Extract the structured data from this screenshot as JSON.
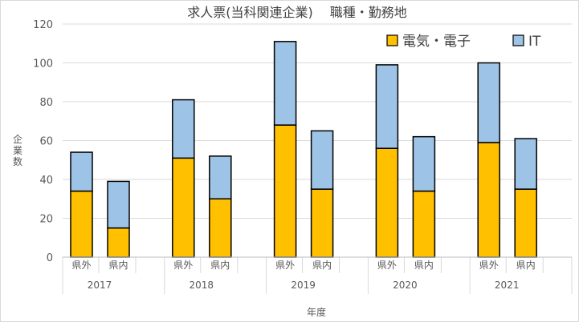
{
  "chart_data": {
    "type": "bar",
    "stacked": true,
    "title": "求人票(当科関連企業)　 職種・勤務地",
    "ylabel": "企業数",
    "xlabel": "年度",
    "ylim": [
      0,
      120
    ],
    "yticks": [
      0,
      20,
      40,
      60,
      80,
      100,
      120
    ],
    "grid": true,
    "legend_position": "top-right",
    "groups": [
      "2017",
      "2018",
      "2019",
      "2020",
      "2021"
    ],
    "categories": [
      "県外",
      "県内"
    ],
    "series": [
      {
        "name": "電気・電子",
        "color": "#ffc000",
        "values": [
          [
            34,
            15
          ],
          [
            51,
            30
          ],
          [
            68,
            35
          ],
          [
            56,
            34
          ],
          [
            59,
            35
          ]
        ]
      },
      {
        "name": "IT",
        "color": "#9dc3e6",
        "values": [
          [
            20,
            24
          ],
          [
            30,
            22
          ],
          [
            43,
            30
          ],
          [
            43,
            28
          ],
          [
            41,
            26
          ]
        ]
      }
    ]
  }
}
